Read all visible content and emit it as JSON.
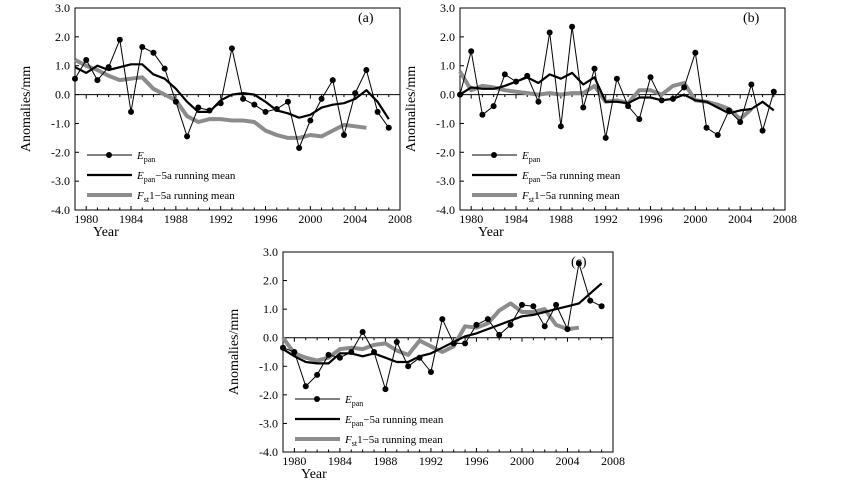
{
  "chart_data": [
    {
      "type": "line",
      "panel_label": "(a)",
      "xlabel": "Year",
      "ylabel": "Anomalies/mm",
      "xlim": [
        1979,
        2008
      ],
      "ylim": [
        -4.0,
        3.0
      ],
      "xticks": [
        1980,
        1984,
        1988,
        1992,
        1996,
        2000,
        2004,
        2008
      ],
      "yticks": [
        "3.0",
        "2.0",
        "1.0",
        "0.0",
        "-1.0",
        "-2.0",
        "-3.0",
        "-4.0"
      ],
      "legend": [
        {
          "main": "E",
          "sub": "pan",
          "rest": ""
        },
        {
          "main": "E",
          "sub": "pan",
          "rest": "−5a running mean"
        },
        {
          "main": "F",
          "sub": "st",
          "rest": "1−5a running mean"
        }
      ],
      "series": [
        {
          "name": "Epan",
          "x": [
            1979,
            1980,
            1981,
            1982,
            1983,
            1984,
            1985,
            1986,
            1987,
            1988,
            1989,
            1990,
            1991,
            1992,
            1993,
            1994,
            1995,
            1996,
            1997,
            1998,
            1999,
            2000,
            2001,
            2002,
            2003,
            2004,
            2005,
            2006,
            2007
          ],
          "values": [
            0.55,
            1.2,
            0.5,
            0.95,
            1.9,
            -0.6,
            1.65,
            1.45,
            0.9,
            -0.25,
            -1.45,
            -0.45,
            -0.55,
            -0.3,
            1.6,
            -0.15,
            -0.35,
            -0.6,
            -0.5,
            -0.25,
            -1.85,
            -0.9,
            -0.15,
            0.5,
            -1.4,
            0.05,
            0.85,
            -0.6,
            -1.15
          ]
        },
        {
          "name": "Epan-5a running mean",
          "x": [
            1979,
            1980,
            1981,
            1982,
            1983,
            1984,
            1985,
            1986,
            1987,
            1988,
            1989,
            1990,
            1991,
            1992,
            1993,
            1994,
            1995,
            1996,
            1997,
            1998,
            1999,
            2000,
            2001,
            2002,
            2003,
            2004,
            2005,
            2006,
            2007
          ],
          "values": [
            0.95,
            0.75,
            1.0,
            0.85,
            0.95,
            1.05,
            1.05,
            0.7,
            0.55,
            0.2,
            -0.25,
            -0.6,
            -0.6,
            -0.2,
            0.0,
            0.05,
            0.0,
            -0.25,
            -0.55,
            -0.65,
            -0.8,
            -0.7,
            -0.45,
            -0.35,
            -0.3,
            -0.15,
            0.15,
            -0.25,
            -0.85
          ]
        },
        {
          "name": "Fst1-5a running mean",
          "x": [
            1979,
            1980,
            1981,
            1982,
            1983,
            1984,
            1985,
            1986,
            1987,
            1988,
            1989,
            1990,
            1991,
            1992,
            1993,
            1994,
            1995,
            1996,
            1997,
            1998,
            1999,
            2000,
            2001,
            2002,
            2003,
            2004,
            2005
          ],
          "values": [
            1.2,
            1.0,
            0.85,
            0.65,
            0.5,
            0.55,
            0.6,
            0.2,
            0.0,
            -0.2,
            -0.75,
            -0.95,
            -0.85,
            -0.85,
            -0.9,
            -0.9,
            -0.95,
            -1.25,
            -1.4,
            -1.5,
            -1.5,
            -1.4,
            -1.45,
            -1.25,
            -1.05,
            -1.1,
            -1.15
          ]
        }
      ]
    },
    {
      "type": "line",
      "panel_label": "(b)",
      "xlabel": "Year",
      "ylabel": "Anomalies/mm",
      "xlim": [
        1979,
        2008
      ],
      "ylim": [
        -4.0,
        3.0
      ],
      "xticks": [
        1980,
        1984,
        1988,
        1992,
        1996,
        2000,
        2004,
        2008
      ],
      "yticks": [
        "3.0",
        "2.0",
        "1.0",
        "0.0",
        "-1.0",
        "-2.0",
        "-3.0",
        "-4.0"
      ],
      "legend": [
        {
          "main": "E",
          "sub": "pan",
          "rest": ""
        },
        {
          "main": "E",
          "sub": "pan",
          "rest": "−5a running mean"
        },
        {
          "main": "F",
          "sub": "st",
          "rest": "1−5a running mean"
        }
      ],
      "series": [
        {
          "name": "Epan",
          "x": [
            1979,
            1980,
            1981,
            1982,
            1983,
            1984,
            1985,
            1986,
            1987,
            1988,
            1989,
            1990,
            1991,
            1992,
            1993,
            1994,
            1995,
            1996,
            1997,
            1998,
            1999,
            2000,
            2001,
            2002,
            2003,
            2004,
            2005,
            2006,
            2007
          ],
          "values": [
            0.0,
            1.5,
            -0.7,
            -0.4,
            0.7,
            0.45,
            0.65,
            -0.25,
            2.15,
            -1.1,
            2.35,
            -0.45,
            0.9,
            -1.5,
            0.55,
            -0.4,
            -0.85,
            0.6,
            -0.2,
            -0.15,
            0.25,
            1.45,
            -1.15,
            -1.4,
            -0.55,
            -0.95,
            0.35,
            -1.25,
            0.1
          ]
        },
        {
          "name": "Epan-5a running mean",
          "x": [
            1979,
            1980,
            1981,
            1982,
            1983,
            1984,
            1985,
            1986,
            1987,
            1988,
            1989,
            1990,
            1991,
            1992,
            1993,
            1994,
            1995,
            1996,
            1997,
            1998,
            1999,
            2000,
            2001,
            2002,
            2003,
            2004,
            2005,
            2006,
            2007
          ],
          "values": [
            0.0,
            0.25,
            0.2,
            0.2,
            0.3,
            0.45,
            0.6,
            0.4,
            0.7,
            0.55,
            0.75,
            0.35,
            0.6,
            -0.25,
            -0.25,
            -0.3,
            -0.1,
            -0.1,
            -0.2,
            -0.15,
            0.0,
            -0.2,
            -0.25,
            -0.45,
            -0.65,
            -0.55,
            -0.5,
            -0.25,
            -0.55
          ]
        },
        {
          "name": "Fst1-5a running mean",
          "x": [
            1979,
            1980,
            1981,
            1982,
            1983,
            1984,
            1985,
            1986,
            1987,
            1988,
            1989,
            1990,
            1991,
            1992,
            1993,
            1994,
            1995,
            1996,
            1997,
            1998,
            1999,
            2000,
            2001,
            2002,
            2003,
            2004,
            2005
          ],
          "values": [
            0.8,
            0.15,
            0.3,
            0.25,
            0.15,
            0.1,
            0.05,
            0.0,
            0.05,
            0.0,
            0.05,
            0.05,
            0.3,
            -0.25,
            -0.2,
            -0.3,
            0.15,
            0.15,
            0.0,
            0.3,
            0.4,
            -0.2,
            -0.25,
            -0.35,
            -0.5,
            -0.85,
            -0.5
          ]
        }
      ]
    },
    {
      "type": "line",
      "panel_label": "(c)",
      "xlabel": "Year",
      "ylabel": "Anomalies/mm",
      "xlim": [
        1979,
        2008
      ],
      "ylim": [
        -4.0,
        3.0
      ],
      "xticks": [
        1980,
        1984,
        1988,
        1992,
        1996,
        2000,
        2004,
        2008
      ],
      "yticks": [
        "3.0",
        "2.0",
        "1.0",
        "0.0",
        "-1.0",
        "-2.0",
        "-3.0",
        "-4.0"
      ],
      "legend": [
        {
          "main": "E",
          "sub": "pan",
          "rest": ""
        },
        {
          "main": "E",
          "sub": "pan",
          "rest": "−5a running mean"
        },
        {
          "main": "F",
          "sub": "st",
          "rest": "1−5a running mean"
        }
      ],
      "series": [
        {
          "name": "Epan",
          "x": [
            1979,
            1980,
            1981,
            1982,
            1983,
            1984,
            1985,
            1986,
            1987,
            1988,
            1989,
            1990,
            1991,
            1992,
            1993,
            1994,
            1995,
            1996,
            1997,
            1998,
            1999,
            2000,
            2001,
            2002,
            2003,
            2004,
            2005,
            2006,
            2007
          ],
          "values": [
            -0.35,
            -0.5,
            -1.7,
            -1.3,
            -0.6,
            -0.7,
            -0.5,
            0.2,
            -0.5,
            -1.8,
            -0.15,
            -1.0,
            -0.7,
            -1.2,
            0.65,
            -0.2,
            -0.2,
            0.45,
            0.65,
            0.1,
            0.45,
            1.15,
            1.1,
            0.4,
            1.15,
            0.3,
            2.6,
            1.3,
            1.1
          ]
        },
        {
          "name": "Epan-5a running mean",
          "x": [
            1979,
            1980,
            1981,
            1982,
            1983,
            1984,
            1985,
            1986,
            1987,
            1988,
            1989,
            1990,
            1991,
            1992,
            1993,
            1994,
            1995,
            1996,
            1997,
            1998,
            1999,
            2000,
            2001,
            2002,
            2003,
            2004,
            2005,
            2006,
            2007
          ],
          "values": [
            -0.4,
            -0.65,
            -0.85,
            -0.9,
            -0.9,
            -0.55,
            -0.55,
            -0.65,
            -0.55,
            -0.7,
            -0.85,
            -0.85,
            -0.65,
            -0.55,
            -0.35,
            -0.15,
            0.05,
            0.15,
            0.3,
            0.45,
            0.6,
            0.75,
            0.8,
            0.9,
            1.0,
            1.1,
            1.2,
            1.55,
            1.9
          ]
        },
        {
          "name": "Fst1-5a running mean",
          "x": [
            1979,
            1980,
            1981,
            1982,
            1983,
            1984,
            1985,
            1986,
            1987,
            1988,
            1989,
            1990,
            1991,
            1992,
            1993,
            1994,
            1995,
            1996,
            1997,
            1998,
            1999,
            2000,
            2001,
            2002,
            2003,
            2004,
            2005
          ],
          "values": [
            0.0,
            -0.55,
            -0.7,
            -0.8,
            -0.7,
            -0.4,
            -0.35,
            -0.4,
            -0.25,
            -0.2,
            -0.45,
            -0.6,
            -0.1,
            -0.3,
            -0.5,
            -0.3,
            0.4,
            0.35,
            0.5,
            0.95,
            1.2,
            0.9,
            0.9,
            1.0,
            0.45,
            0.3,
            0.35
          ]
        }
      ]
    }
  ]
}
